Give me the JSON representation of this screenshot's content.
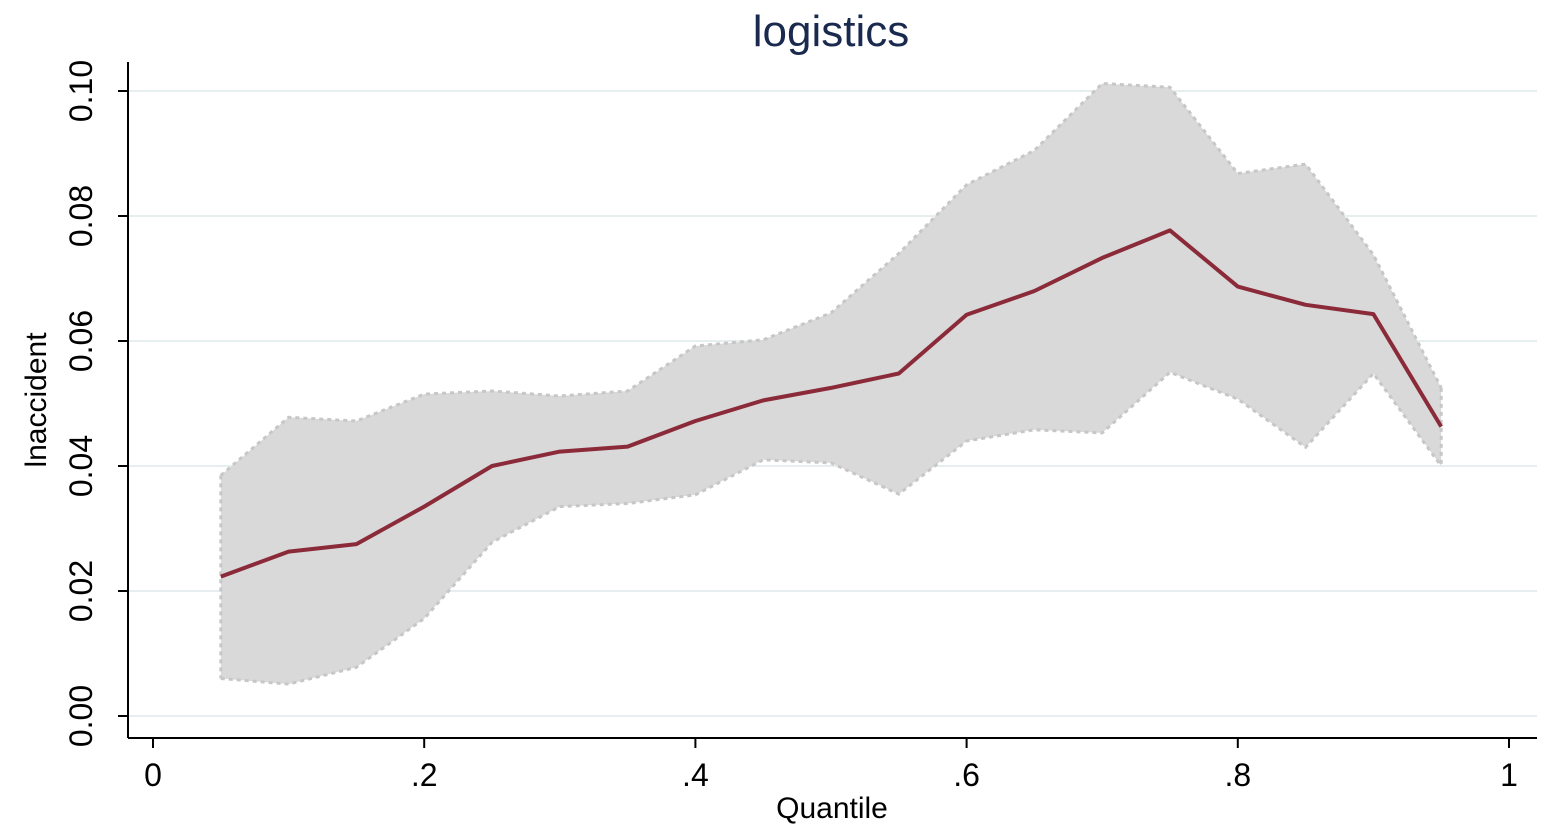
{
  "colors": {
    "line": "#8b2b3a",
    "band": "#d9d9d9",
    "band_edge": "#c7c7c7",
    "grid": "#e6eef0",
    "axis": "#000000",
    "title": "#1a2a4f"
  },
  "chart_data": {
    "type": "line",
    "title": "logistics",
    "xlabel": "Quantile",
    "ylabel": "lnaccident",
    "xlim": [
      0,
      1
    ],
    "ylim": [
      0,
      0.1
    ],
    "grid": true,
    "xticks": [
      {
        "value": 0,
        "label": "0"
      },
      {
        "value": 0.2,
        "label": ".2"
      },
      {
        "value": 0.4,
        "label": ".4"
      },
      {
        "value": 0.6,
        "label": ".6"
      },
      {
        "value": 0.8,
        "label": ".8"
      },
      {
        "value": 1,
        "label": "1"
      }
    ],
    "yticks": [
      {
        "value": 0,
        "label": "0.00"
      },
      {
        "value": 0.02,
        "label": "0.02"
      },
      {
        "value": 0.04,
        "label": "0.04"
      },
      {
        "value": 0.06,
        "label": "0.06"
      },
      {
        "value": 0.08,
        "label": "0.08"
      },
      {
        "value": 0.1,
        "label": "0.10"
      }
    ],
    "x": [
      0.05,
      0.1,
      0.15,
      0.2,
      0.25,
      0.3,
      0.35,
      0.4,
      0.45,
      0.5,
      0.55,
      0.6,
      0.65,
      0.7,
      0.75,
      0.8,
      0.85,
      0.9,
      0.95
    ],
    "series": [
      {
        "values": [
          0.0223,
          0.0263,
          0.0275,
          0.0335,
          0.04,
          0.0423,
          0.0431,
          0.0472,
          0.0505,
          0.0525,
          0.0548,
          0.0642,
          0.068,
          0.0733,
          0.0777,
          0.0687,
          0.0658,
          0.0643,
          0.0463
        ]
      }
    ],
    "band": {
      "upper": [
        0.0385,
        0.0478,
        0.0472,
        0.0515,
        0.052,
        0.0512,
        0.052,
        0.0592,
        0.0602,
        0.0645,
        0.074,
        0.085,
        0.0905,
        0.1012,
        0.1006,
        0.0868,
        0.0883,
        0.0738,
        0.0525
      ],
      "lower": [
        0.006,
        0.0051,
        0.0078,
        0.0156,
        0.0278,
        0.0335,
        0.034,
        0.0354,
        0.041,
        0.0405,
        0.0355,
        0.044,
        0.0458,
        0.0453,
        0.055,
        0.0507,
        0.043,
        0.0548,
        0.04
      ]
    }
  }
}
